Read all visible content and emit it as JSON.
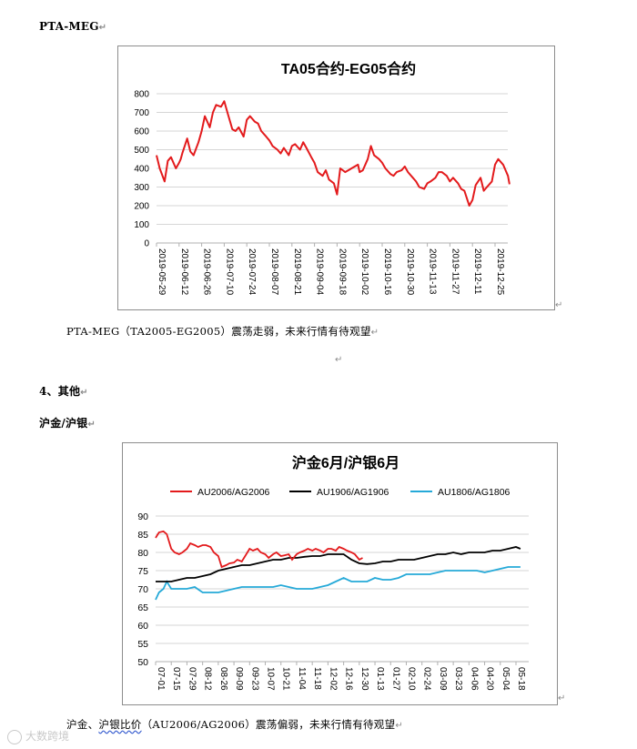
{
  "doc": {
    "title_mark": "PTA-MEG",
    "para1": "PTA-MEG（TA2005-EG2005）震荡走弱，未来行情有待观望",
    "section_heading": "4、其他",
    "sub_heading": "沪金/沪银",
    "para2_pre": "沪金、",
    "para2_squiggle": "沪银比价",
    "para2_post": "（AU2006/AG2006）震荡偏弱，未来行情有待观望",
    "return_mark": "↵",
    "watermark": "大数跨境"
  },
  "chart_data": [
    {
      "type": "line",
      "title": "TA05合约-EG05合约",
      "ylim": [
        0,
        800
      ],
      "yticks": [
        0,
        100,
        200,
        300,
        400,
        500,
        600,
        700,
        800
      ],
      "xticks": [
        "2019-05-29",
        "2019-06-12",
        "2019-06-26",
        "2019-07-10",
        "2019-07-24",
        "2019-08-07",
        "2019-08-21",
        "2019-09-04",
        "2019-09-18",
        "2019-10-02",
        "2019-10-16",
        "2019-10-30",
        "2019-11-13",
        "2019-11-27",
        "2019-12-11",
        "2019-12-25"
      ],
      "grid": true,
      "series": [
        {
          "color": "#e31a1c",
          "x": [
            "2019-05-29",
            "2019-05-31",
            "2019-06-03",
            "2019-06-05",
            "2019-06-07",
            "2019-06-10",
            "2019-06-12",
            "2019-06-13",
            "2019-06-14",
            "2019-06-17",
            "2019-06-19",
            "2019-06-21",
            "2019-06-24",
            "2019-06-26",
            "2019-06-28",
            "2019-07-01",
            "2019-07-03",
            "2019-07-05",
            "2019-07-08",
            "2019-07-10",
            "2019-07-12",
            "2019-07-15",
            "2019-07-17",
            "2019-07-19",
            "2019-07-22",
            "2019-07-24",
            "2019-07-26",
            "2019-07-29",
            "2019-07-31",
            "2019-08-02",
            "2019-08-05",
            "2019-08-07",
            "2019-08-09",
            "2019-08-12",
            "2019-08-14",
            "2019-08-16",
            "2019-08-19",
            "2019-08-21",
            "2019-08-23",
            "2019-08-26",
            "2019-08-28",
            "2019-08-30",
            "2019-09-02",
            "2019-09-04",
            "2019-09-06",
            "2019-09-09",
            "2019-09-11",
            "2019-09-13",
            "2019-09-16",
            "2019-09-18",
            "2019-09-20",
            "2019-09-23",
            "2019-09-25",
            "2019-09-27",
            "2019-10-01",
            "2019-10-02",
            "2019-10-04",
            "2019-10-07",
            "2019-10-09",
            "2019-10-11",
            "2019-10-14",
            "2019-10-16",
            "2019-10-18",
            "2019-10-21",
            "2019-10-23",
            "2019-10-25",
            "2019-10-28",
            "2019-10-30",
            "2019-11-01",
            "2019-11-04",
            "2019-11-06",
            "2019-11-08",
            "2019-11-11",
            "2019-11-13",
            "2019-11-15",
            "2019-11-18",
            "2019-11-20",
            "2019-11-22",
            "2019-11-25",
            "2019-11-27",
            "2019-11-29",
            "2019-12-02",
            "2019-12-04",
            "2019-12-06",
            "2019-12-09",
            "2019-12-11",
            "2019-12-13",
            "2019-12-16",
            "2019-12-18",
            "2019-12-20",
            "2019-12-23",
            "2019-12-25",
            "2019-12-27",
            "2019-12-30",
            "2020-01-02",
            "2020-01-03"
          ],
          "values": [
            470,
            400,
            330,
            440,
            460,
            400,
            430,
            450,
            480,
            560,
            490,
            470,
            540,
            600,
            680,
            620,
            700,
            740,
            730,
            760,
            700,
            610,
            600,
            620,
            570,
            660,
            680,
            650,
            640,
            600,
            570,
            550,
            520,
            500,
            480,
            510,
            470,
            520,
            530,
            500,
            540,
            510,
            460,
            430,
            380,
            360,
            390,
            340,
            320,
            260,
            400,
            380,
            390,
            400,
            420,
            380,
            390,
            450,
            520,
            470,
            450,
            430,
            400,
            370,
            360,
            380,
            390,
            410,
            380,
            350,
            330,
            300,
            290,
            320,
            330,
            350,
            380,
            380,
            360,
            330,
            350,
            320,
            290,
            280,
            200,
            230,
            310,
            350,
            280,
            300,
            330,
            420,
            450,
            420,
            360,
            315
          ]
        }
      ]
    },
    {
      "type": "line",
      "title": "沪金6月/沪银6月",
      "ylim": [
        50,
        90
      ],
      "yticks": [
        50,
        55,
        60,
        65,
        70,
        75,
        80,
        85,
        90
      ],
      "xticks": [
        "07-01",
        "07-15",
        "07-29",
        "08-12",
        "08-26",
        "09-09",
        "09-23",
        "10-07",
        "10-21",
        "11-04",
        "11-18",
        "12-02",
        "12-16",
        "12-30",
        "01-13",
        "01-27",
        "02-10",
        "02-24",
        "03-09",
        "03-23",
        "04-06",
        "04-20",
        "05-04",
        "05-18"
      ],
      "legend_position": "top",
      "grid": true,
      "series": [
        {
          "name": "AU2006/AG2006",
          "color": "#e31a1c",
          "x": [
            "07-01",
            "07-04",
            "07-08",
            "07-11",
            "07-15",
            "07-18",
            "07-22",
            "07-25",
            "07-29",
            "08-01",
            "08-05",
            "08-08",
            "08-12",
            "08-15",
            "08-19",
            "08-22",
            "08-26",
            "08-29",
            "09-02",
            "09-05",
            "09-09",
            "09-12",
            "09-16",
            "09-19",
            "09-23",
            "09-26",
            "09-30",
            "10-03",
            "10-07",
            "10-10",
            "10-14",
            "10-17",
            "10-21",
            "10-24",
            "10-28",
            "10-31",
            "11-04",
            "11-07",
            "11-11",
            "11-14",
            "11-18",
            "11-21",
            "11-25",
            "11-28",
            "12-02",
            "12-05",
            "12-09",
            "12-12",
            "12-16",
            "12-19",
            "12-23",
            "12-26",
            "12-30",
            "01-02"
          ],
          "values": [
            84,
            85.5,
            85.8,
            85,
            81,
            80,
            79.5,
            80,
            81,
            82.5,
            82,
            81.5,
            82,
            82,
            81.5,
            80,
            79,
            76,
            76.5,
            77,
            77.2,
            78,
            77.5,
            79,
            81,
            80.5,
            81,
            80,
            79.5,
            78.5,
            79.5,
            80,
            79,
            79.2,
            79.5,
            78,
            79.5,
            80,
            80.5,
            81,
            80.5,
            81,
            80.5,
            80,
            81,
            81,
            80.5,
            81.5,
            81,
            80.5,
            80,
            79.5,
            78,
            78.5
          ]
        },
        {
          "name": "AU1906/AG1906",
          "color": "#000000",
          "x": [
            "07-01",
            "07-08",
            "07-15",
            "07-22",
            "07-29",
            "08-05",
            "08-12",
            "08-19",
            "08-26",
            "09-02",
            "09-09",
            "09-16",
            "09-23",
            "09-30",
            "10-07",
            "10-14",
            "10-21",
            "10-28",
            "11-04",
            "11-11",
            "11-18",
            "11-25",
            "12-02",
            "12-09",
            "12-16",
            "12-23",
            "12-30",
            "01-06",
            "01-13",
            "01-20",
            "01-27",
            "02-03",
            "02-10",
            "02-17",
            "02-24",
            "03-02",
            "03-09",
            "03-16",
            "03-23",
            "03-30",
            "04-06",
            "04-13",
            "04-20",
            "04-27",
            "05-04",
            "05-11",
            "05-18",
            "05-22"
          ],
          "values": [
            72,
            72,
            72,
            72.5,
            73,
            73,
            73.5,
            74,
            75,
            75.5,
            76,
            76.5,
            76.5,
            77,
            77.5,
            78,
            78,
            78.5,
            78.5,
            78.8,
            79,
            79,
            79.5,
            79.5,
            79.5,
            78,
            77,
            76.8,
            77,
            77.5,
            77.5,
            78,
            78,
            78,
            78.5,
            79,
            79.5,
            79.5,
            80,
            79.5,
            80,
            80,
            80,
            80.5,
            80.5,
            81,
            81.5,
            81
          ]
        },
        {
          "name": "AU1806/AG1806",
          "color": "#25a9d8",
          "x": [
            "07-01",
            "07-04",
            "07-08",
            "07-11",
            "07-15",
            "07-22",
            "07-29",
            "08-05",
            "08-12",
            "08-19",
            "08-26",
            "09-02",
            "09-09",
            "09-16",
            "09-23",
            "09-30",
            "10-07",
            "10-14",
            "10-21",
            "10-28",
            "11-04",
            "11-11",
            "11-18",
            "11-25",
            "12-02",
            "12-09",
            "12-16",
            "12-23",
            "12-30",
            "01-06",
            "01-13",
            "01-20",
            "01-27",
            "02-03",
            "02-10",
            "02-17",
            "02-24",
            "03-02",
            "03-09",
            "03-16",
            "03-23",
            "03-30",
            "04-06",
            "04-13",
            "04-20",
            "04-27",
            "05-04",
            "05-11",
            "05-18",
            "05-22"
          ],
          "values": [
            67,
            69,
            70,
            72,
            70,
            70,
            70,
            70.5,
            69,
            69,
            69,
            69.5,
            70,
            70.5,
            70.5,
            70.5,
            70.5,
            70.5,
            71,
            70.5,
            70,
            70,
            70,
            70.5,
            71,
            72,
            73,
            72,
            72,
            72,
            73,
            72.5,
            72.5,
            73,
            74,
            74,
            74,
            74,
            74.5,
            75,
            75,
            75,
            75,
            75,
            74.5,
            75,
            75.5,
            76,
            76,
            76
          ]
        }
      ]
    }
  ]
}
